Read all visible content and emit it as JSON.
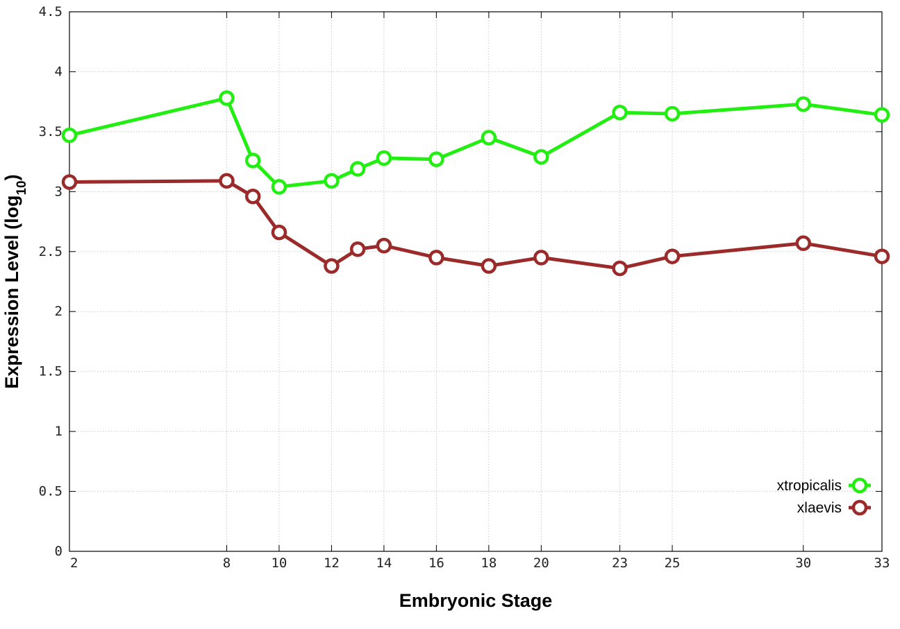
{
  "chart_data": {
    "type": "line",
    "xlabel": "Embryonic Stage",
    "ylabel": "Expression Level (log",
    "ylabel_sub": "10",
    "ylabel_end": ")",
    "xlim": [
      2,
      33
    ],
    "ylim": [
      0,
      4.5
    ],
    "x_ticks": [
      2,
      8,
      10,
      12,
      14,
      16,
      18,
      20,
      23,
      25,
      30,
      33
    ],
    "x_tick_labels": [
      "2",
      "8",
      "10",
      "12",
      "14",
      "16",
      "18",
      "20",
      "23",
      "25",
      "30",
      "33"
    ],
    "y_ticks": [
      0,
      0.5,
      1,
      1.5,
      2,
      2.5,
      3,
      3.5,
      4,
      4.5
    ],
    "y_tick_labels": [
      "0",
      "0.5",
      "1",
      "1.5",
      "2",
      "2.5",
      "3",
      "3.5",
      "4",
      "4.5"
    ],
    "grid": true,
    "legend_position": "bottom-right",
    "x": [
      2,
      8,
      9,
      10,
      12,
      13,
      14,
      16,
      18,
      20,
      23,
      25,
      30,
      33
    ],
    "series": [
      {
        "name": "xtropicalis",
        "color": "#22ee11",
        "values": [
          3.47,
          3.78,
          3.26,
          3.04,
          3.09,
          3.19,
          3.28,
          3.27,
          3.45,
          3.29,
          3.66,
          3.65,
          3.73,
          3.64
        ]
      },
      {
        "name": "xlaevis",
        "color": "#9b2a2a",
        "values": [
          3.08,
          3.09,
          2.96,
          2.66,
          2.38,
          2.52,
          2.55,
          2.45,
          2.38,
          2.45,
          2.36,
          2.46,
          2.57,
          2.46
        ]
      }
    ]
  }
}
